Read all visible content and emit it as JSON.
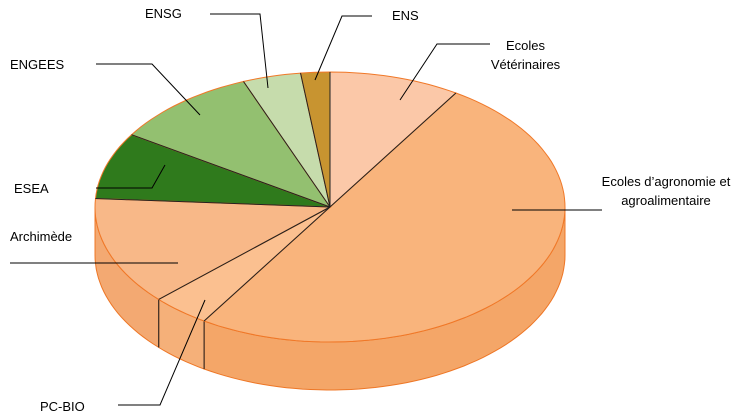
{
  "chart_data": {
    "type": "pie",
    "categories": [
      "Ecoles Vétérinaires",
      "Ecoles d’agronomie et agroalimentaire",
      "PC-BIO",
      "Archimède",
      "ESEA",
      "ENGEES",
      "ENSG",
      "ENS"
    ],
    "values": [
      9,
      50,
      4,
      13,
      8,
      10,
      4,
      2
    ],
    "colors": [
      "#fbc8a8",
      "#f9b47c",
      "#fbc090",
      "#f8b888",
      "#2f7a1c",
      "#93c070",
      "#c6dcac",
      "#c89430"
    ]
  }
}
